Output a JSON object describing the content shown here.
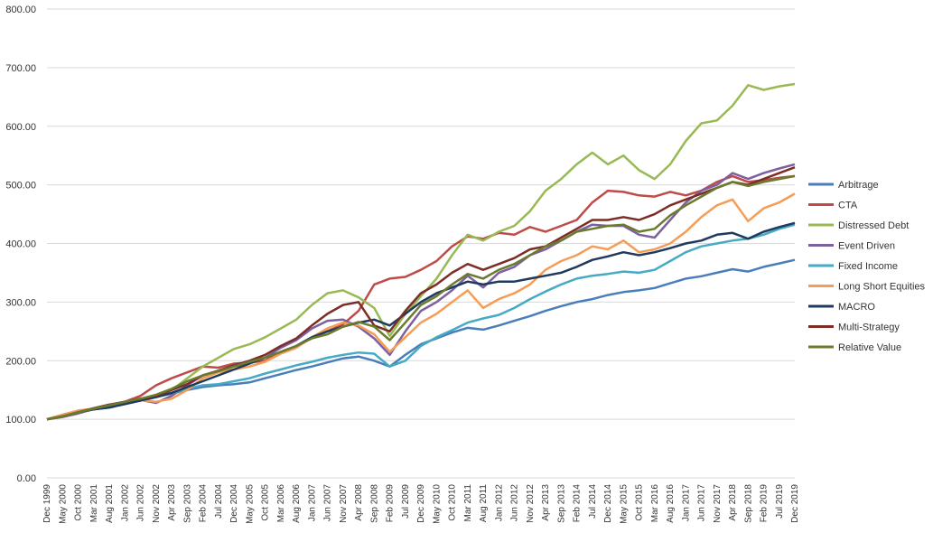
{
  "chart_data": {
    "type": "line",
    "title": "",
    "xlabel": "",
    "ylabel": "",
    "ylim": [
      0,
      800
    ],
    "y_ticks": [
      "0.00",
      "100.00",
      "200.00",
      "300.00",
      "400.00",
      "500.00",
      "600.00",
      "700.00",
      "800.00"
    ],
    "grid": true,
    "legend_position": "right",
    "x_tick_labels": [
      "Dec 1999",
      "May 2000",
      "Oct 2000",
      "Mar 2001",
      "Aug 2001",
      "Jan 2002",
      "Jun 2002",
      "Nov 2002",
      "Apr 2003",
      "Sep 2003",
      "Feb 2004",
      "Jul 2004",
      "Dec 2004",
      "May 2005",
      "Oct 2005",
      "Mar 2006",
      "Aug 2006",
      "Jan 2007",
      "Jun 2007",
      "Nov 2007",
      "Apr 2008",
      "Sep 2008",
      "Feb 2009",
      "Jul 2009",
      "Dec 2009",
      "May 2010",
      "Oct 2010",
      "Mar 2011",
      "Aug 2011",
      "Jan 2012",
      "Jun 2012",
      "Nov 2012",
      "Apr 2013",
      "Sep 2013",
      "Feb 2014",
      "Jul 2014",
      "Dec 2014",
      "May 2015",
      "Oct 2015",
      "Mar 2016",
      "Aug 2016",
      "Jan 2017",
      "Jun 2017",
      "Nov 2017",
      "Apr 2018",
      "Sep 2018",
      "Feb 2019",
      "Jul 2019",
      "Dec 2019"
    ],
    "series": [
      {
        "name": "Arbitrage",
        "color": "#4a7ebb",
        "values": [
          100,
          106,
          113,
          117,
          120,
          126,
          132,
          138,
          144,
          150,
          155,
          158,
          160,
          163,
          170,
          177,
          184,
          190,
          197,
          204,
          207,
          200,
          190,
          210,
          228,
          238,
          248,
          256,
          253,
          260,
          268,
          276,
          285,
          293,
          300,
          305,
          312,
          317,
          320,
          324,
          332,
          340,
          344,
          350,
          356,
          352,
          360,
          366,
          372
        ]
      },
      {
        "name": "CTA",
        "color": "#be4b48",
        "values": [
          100,
          104,
          110,
          118,
          124,
          130,
          140,
          158,
          170,
          180,
          190,
          188,
          195,
          197,
          200,
          215,
          225,
          240,
          250,
          262,
          285,
          330,
          340,
          343,
          355,
          370,
          395,
          412,
          408,
          418,
          415,
          428,
          420,
          430,
          440,
          470,
          490,
          488,
          482,
          480,
          488,
          482,
          490,
          505,
          515,
          505,
          508,
          512,
          515
        ]
      },
      {
        "name": "Distressed Debt",
        "color": "#98b954",
        "values": [
          100,
          104,
          110,
          117,
          123,
          128,
          132,
          138,
          150,
          170,
          190,
          205,
          220,
          228,
          240,
          255,
          270,
          295,
          315,
          320,
          308,
          290,
          242,
          280,
          310,
          340,
          380,
          415,
          405,
          420,
          430,
          455,
          490,
          510,
          535,
          555,
          535,
          550,
          525,
          510,
          535,
          575,
          605,
          610,
          635,
          670,
          662,
          668,
          672
        ]
      },
      {
        "name": "Event Driven",
        "color": "#7d60a0",
        "values": [
          100,
          104,
          110,
          118,
          123,
          128,
          133,
          128,
          140,
          158,
          175,
          182,
          190,
          196,
          205,
          222,
          235,
          255,
          268,
          270,
          258,
          238,
          210,
          250,
          285,
          300,
          320,
          345,
          325,
          350,
          360,
          380,
          390,
          405,
          420,
          432,
          430,
          430,
          415,
          410,
          440,
          470,
          490,
          500,
          520,
          510,
          520,
          528,
          535
        ]
      },
      {
        "name": "Fixed Income",
        "color": "#46aac5",
        "values": [
          100,
          105,
          112,
          117,
          121,
          127,
          132,
          138,
          145,
          152,
          158,
          160,
          165,
          170,
          178,
          185,
          192,
          198,
          205,
          210,
          214,
          212,
          190,
          200,
          225,
          240,
          252,
          265,
          272,
          278,
          290,
          305,
          318,
          330,
          340,
          345,
          348,
          352,
          350,
          355,
          370,
          385,
          395,
          400,
          405,
          408,
          415,
          425,
          432
        ]
      },
      {
        "name": "Long Short Equities",
        "color": "#f59d56",
        "values": [
          100,
          108,
          115,
          118,
          122,
          128,
          133,
          130,
          135,
          150,
          170,
          180,
          185,
          190,
          198,
          212,
          222,
          240,
          255,
          265,
          260,
          245,
          215,
          240,
          265,
          280,
          300,
          320,
          290,
          305,
          315,
          330,
          355,
          370,
          380,
          395,
          390,
          405,
          385,
          390,
          400,
          420,
          445,
          465,
          475,
          438,
          460,
          470,
          485
        ]
      },
      {
        "name": "MACRO",
        "color": "#1f3a5f",
        "values": [
          100,
          105,
          112,
          117,
          120,
          126,
          132,
          138,
          145,
          155,
          165,
          175,
          185,
          195,
          205,
          215,
          225,
          240,
          250,
          258,
          265,
          270,
          260,
          280,
          300,
          315,
          325,
          335,
          330,
          335,
          335,
          340,
          345,
          350,
          360,
          372,
          378,
          385,
          380,
          385,
          392,
          400,
          405,
          415,
          418,
          408,
          420,
          428,
          435
        ]
      },
      {
        "name": "Multi-Strategy",
        "color": "#7b2d26",
        "values": [
          100,
          105,
          112,
          119,
          125,
          130,
          135,
          140,
          150,
          160,
          175,
          183,
          192,
          200,
          210,
          225,
          238,
          260,
          280,
          295,
          300,
          260,
          250,
          285,
          315,
          330,
          350,
          365,
          355,
          365,
          375,
          390,
          395,
          410,
          425,
          440,
          440,
          445,
          440,
          450,
          465,
          475,
          485,
          495,
          505,
          500,
          510,
          520,
          530
        ]
      },
      {
        "name": "Relative Value",
        "color": "#6b7b2e",
        "values": [
          100,
          105,
          112,
          118,
          124,
          130,
          135,
          142,
          152,
          165,
          175,
          182,
          190,
          198,
          205,
          215,
          225,
          238,
          245,
          258,
          266,
          258,
          235,
          265,
          295,
          310,
          330,
          348,
          340,
          355,
          365,
          380,
          395,
          405,
          420,
          425,
          430,
          432,
          420,
          425,
          448,
          465,
          480,
          495,
          505,
          498,
          505,
          510,
          515
        ]
      }
    ]
  }
}
